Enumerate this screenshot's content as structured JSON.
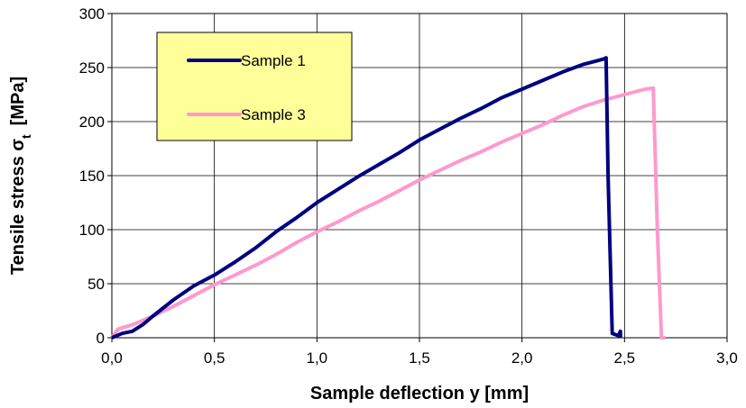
{
  "chart_data": {
    "type": "line",
    "title": "",
    "xlabel": "Sample deflection y [mm]",
    "ylabel": "Tensile stress σ",
    "ylabel_subscript": "t",
    "ylabel_unit": "[MPa]",
    "xlim": [
      0,
      3.0
    ],
    "ylim": [
      0,
      300
    ],
    "x_ticks": [
      0,
      0.5,
      1.0,
      1.5,
      2.0,
      2.5,
      3.0
    ],
    "x_tick_labels": [
      "0,0",
      "0,5",
      "1,0",
      "1,5",
      "2,0",
      "2,5",
      "3,0"
    ],
    "y_ticks": [
      0,
      50,
      100,
      150,
      200,
      250,
      300
    ],
    "y_tick_labels": [
      "0",
      "50",
      "100",
      "150",
      "200",
      "250",
      "300"
    ],
    "grid": true,
    "legend": {
      "placement": "top-left",
      "background": "#FFFF99"
    },
    "series": [
      {
        "name": "Sample 1",
        "color": "#000080",
        "points": [
          [
            0,
            0
          ],
          [
            0.05,
            4
          ],
          [
            0.1,
            6
          ],
          [
            0.15,
            12
          ],
          [
            0.2,
            20
          ],
          [
            0.3,
            35
          ],
          [
            0.4,
            48
          ],
          [
            0.5,
            58
          ],
          [
            0.6,
            70
          ],
          [
            0.7,
            83
          ],
          [
            0.8,
            98
          ],
          [
            0.9,
            111
          ],
          [
            1.0,
            125
          ],
          [
            1.1,
            137
          ],
          [
            1.2,
            149
          ],
          [
            1.3,
            160
          ],
          [
            1.4,
            171
          ],
          [
            1.5,
            183
          ],
          [
            1.6,
            193
          ],
          [
            1.7,
            203
          ],
          [
            1.8,
            212
          ],
          [
            1.9,
            222
          ],
          [
            2.0,
            230
          ],
          [
            2.1,
            238
          ],
          [
            2.2,
            246
          ],
          [
            2.3,
            253
          ],
          [
            2.4,
            258
          ],
          [
            2.41,
            259
          ],
          [
            2.42,
            150
          ],
          [
            2.44,
            4
          ],
          [
            2.47,
            2
          ],
          [
            2.48,
            6
          ],
          [
            2.48,
            0
          ]
        ]
      },
      {
        "name": "Sample 3",
        "color": "#FF99CC",
        "points": [
          [
            0,
            0
          ],
          [
            0.03,
            8
          ],
          [
            0.1,
            12
          ],
          [
            0.2,
            20
          ],
          [
            0.3,
            29
          ],
          [
            0.4,
            39
          ],
          [
            0.5,
            49
          ],
          [
            0.6,
            58
          ],
          [
            0.7,
            67
          ],
          [
            0.8,
            77
          ],
          [
            0.9,
            88
          ],
          [
            1.0,
            98
          ],
          [
            1.1,
            107
          ],
          [
            1.2,
            117
          ],
          [
            1.3,
            126
          ],
          [
            1.4,
            136
          ],
          [
            1.5,
            146
          ],
          [
            1.6,
            155
          ],
          [
            1.7,
            164
          ],
          [
            1.8,
            172
          ],
          [
            1.9,
            181
          ],
          [
            2.0,
            189
          ],
          [
            2.1,
            197
          ],
          [
            2.2,
            206
          ],
          [
            2.3,
            214
          ],
          [
            2.4,
            220
          ],
          [
            2.5,
            225
          ],
          [
            2.6,
            230
          ],
          [
            2.64,
            231
          ],
          [
            2.66,
            100
          ],
          [
            2.68,
            0
          ],
          [
            2.7,
            0
          ]
        ]
      }
    ]
  }
}
